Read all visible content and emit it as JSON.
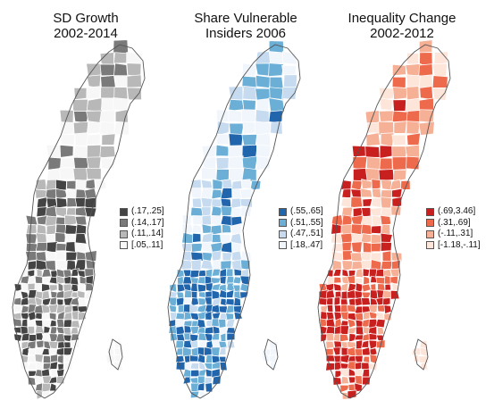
{
  "colors": {
    "border": "#ffffff",
    "outline": "#555555"
  },
  "panels": [
    {
      "id": "sd-growth",
      "title_line1": "SD Growth",
      "title_line2": "2002-2014",
      "legend": [
        {
          "label": "(.17,.25]",
          "color": "#444444"
        },
        {
          "label": "(.14,.17]",
          "color": "#7a7a7a"
        },
        {
          "label": "(.11,.14]",
          "color": "#b8b8b8"
        },
        {
          "label": "[.05,.11]",
          "color": "#f7f7f7"
        }
      ]
    },
    {
      "id": "share-vulnerable",
      "title_line1": "Share Vulnerable",
      "title_line2": "Insiders 2006",
      "legend": [
        {
          "label": "(.55,.65]",
          "color": "#2166ac"
        },
        {
          "label": "(.51,.55]",
          "color": "#6baed6"
        },
        {
          "label": "(.47,.51]",
          "color": "#c6dbef"
        },
        {
          "label": "[.18,.47]",
          "color": "#f1f6fc"
        }
      ]
    },
    {
      "id": "inequality-change",
      "title_line1": "Inequality Change",
      "title_line2": "2002-2012",
      "legend": [
        {
          "label": "(.69,3.46]",
          "color": "#c8201e"
        },
        {
          "label": "(.31,.69]",
          "color": "#ee6a4d"
        },
        {
          "label": "(-.11,.31]",
          "color": "#f6b096"
        },
        {
          "label": "[-1.18,-.11]",
          "color": "#fde5d9"
        }
      ]
    }
  ]
}
